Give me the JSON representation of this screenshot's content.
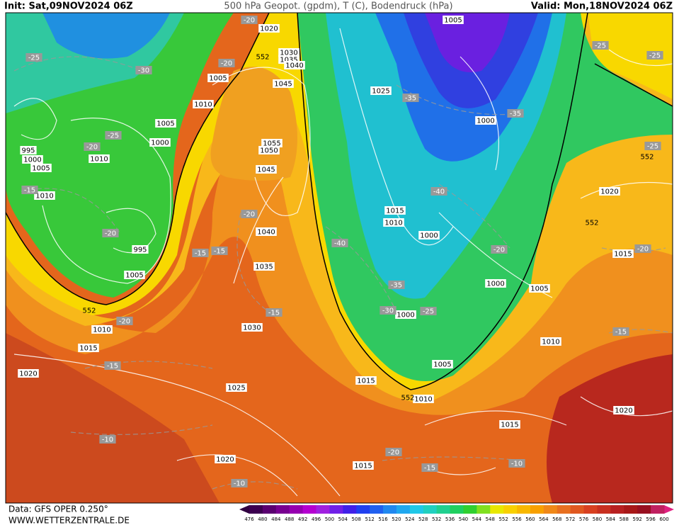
{
  "header": {
    "init": "Init: Sat,09NOV2024 06Z",
    "title": "500 hPa Geopot. (gpdm), T (C), Bodendruck (hPa)",
    "valid": "Valid: Mon,18NOV2024 06Z"
  },
  "map": {
    "pressure_labels": [
      "1020",
      "1005",
      "1030",
      "1035",
      "1040",
      "1005",
      "1010",
      "1045",
      "1025",
      "1000",
      "1005",
      "1000",
      "1055",
      "1050",
      "995",
      "1000",
      "1010",
      "1005",
      "1045",
      "1010",
      "1020",
      "1015",
      "1010",
      "1040",
      "1000",
      "995",
      "1015",
      "1035",
      "1005",
      "1000",
      "1005",
      "1000",
      "1010",
      "1030",
      "1010",
      "1015",
      "1020",
      "1005",
      "1015",
      "1025",
      "1010",
      "1020",
      "1015",
      "1020",
      "1015"
    ],
    "temperature_labels": [
      "-25",
      "-30",
      "-20",
      "-35",
      "-35",
      "-25",
      "-20",
      "-25",
      "-15",
      "-40",
      "-20",
      "-20",
      "-40",
      "-15",
      "-15",
      "-20",
      "-20",
      "-35",
      "-30",
      "-25",
      "-15",
      "-20",
      "-15",
      "-15",
      "-10",
      "-20",
      "-15",
      "-10",
      "-10",
      "-25",
      "-25",
      "-20"
    ],
    "geopotential_labels": [
      "552",
      "552",
      "552",
      "552",
      "552"
    ]
  },
  "legend": {
    "scale": [
      "476",
      "480",
      "484",
      "488",
      "492",
      "496",
      "500",
      "504",
      "508",
      "512",
      "516",
      "520",
      "524",
      "528",
      "532",
      "536",
      "540",
      "544",
      "548",
      "552",
      "556",
      "560",
      "564",
      "568",
      "572",
      "576",
      "580",
      "584",
      "588",
      "592",
      "596",
      "600"
    ]
  },
  "footer": {
    "data": "Data: GFS OPER 0.250°",
    "source": "WWW.WETTERZENTRALE.DE"
  }
}
